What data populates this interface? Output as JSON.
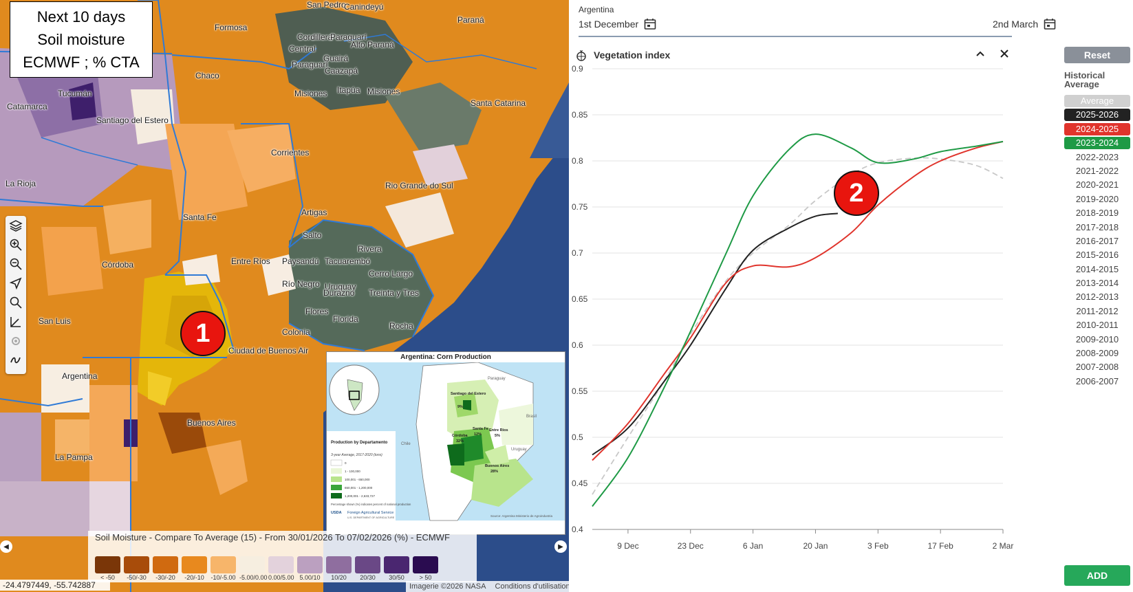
{
  "caption": {
    "line1": "Next 10 days",
    "line2": "Soil moisture",
    "line3": "ECMWF ; % CTA"
  },
  "badges": {
    "one": "1",
    "two": "2"
  },
  "map_labels": [
    {
      "text": "San Pedro",
      "k": "sanpedro"
    },
    {
      "text": "Canindeyú",
      "k": "canindeyu"
    },
    {
      "text": "Formosa",
      "k": "formosa"
    },
    {
      "text": "Cordillera",
      "k": "cordillera"
    },
    {
      "text": "Paraguarí",
      "k": "paraguari0"
    },
    {
      "text": "Central",
      "k": "central"
    },
    {
      "text": "Alto Paraná",
      "k": "altoparana"
    },
    {
      "text": "Paraná",
      "k": "parana"
    },
    {
      "text": "Guairá",
      "k": "guaira"
    },
    {
      "text": "Paraguarí",
      "k": "paraguari"
    },
    {
      "text": "Caazapá",
      "k": "caazapa"
    },
    {
      "text": "Chaco",
      "k": "chaco"
    },
    {
      "text": "Tucumán",
      "k": "tucuman"
    },
    {
      "text": "Misiones",
      "k": "misiones"
    },
    {
      "text": "Itapúa",
      "k": "itapua"
    },
    {
      "text": "Misiones",
      "k": "misiones2"
    },
    {
      "text": "Catamarca",
      "k": "catamarca"
    },
    {
      "text": "Santa Catarina",
      "k": "santacatarina"
    },
    {
      "text": "Santiago del Estero",
      "k": "santiago"
    },
    {
      "text": "Corrientes",
      "k": "corrientes"
    },
    {
      "text": "La Rioja",
      "k": "larioja"
    },
    {
      "text": "Rio Grande do Sul",
      "k": "riogrande"
    },
    {
      "text": "Artigas",
      "k": "artigas"
    },
    {
      "text": "Santa Fe",
      "k": "santafe"
    },
    {
      "text": "Salto",
      "k": "salto"
    },
    {
      "text": "Rivera",
      "k": "rivera"
    },
    {
      "text": "Córdoba",
      "k": "cordoba"
    },
    {
      "text": "Entre Ríos",
      "k": "entrerios"
    },
    {
      "text": "Paysandú",
      "k": "paysandu"
    },
    {
      "text": "Tacuarembó",
      "k": "tacuarembo"
    },
    {
      "text": "Cerro Largo",
      "k": "cerrolargo"
    },
    {
      "text": "Río Negro",
      "k": "rionegro"
    },
    {
      "text": "Uruguay",
      "k": "uruguay"
    },
    {
      "text": "Durazno",
      "k": "durazno"
    },
    {
      "text": "Treinta y Tres",
      "k": "treinta"
    },
    {
      "text": "San Luis",
      "k": "sanluis"
    },
    {
      "text": "Flores",
      "k": "flores"
    },
    {
      "text": "Florida",
      "k": "florida"
    },
    {
      "text": "Rocha",
      "k": "rocha"
    },
    {
      "text": "Colonia",
      "k": "colonia"
    },
    {
      "text": "Ciudad de Buenos Air",
      "k": "caba"
    },
    {
      "text": "Argentina",
      "k": "argentina"
    },
    {
      "text": "Buenos Aires",
      "k": "bsas"
    },
    {
      "text": "La Pampa",
      "k": "lapampa"
    }
  ],
  "inset": {
    "title": "Argentina: Corn Production",
    "legend_title": "Production by Departamento",
    "legend_sub": "3-year Average, 2017-2020 (tons)",
    "classes": [
      "0",
      "1 - 100,000",
      "100,001 - 650,000",
      "650,001 - 1,200,000",
      "1,200,001 - 2,633,727"
    ],
    "note": "Percentage shown (%) indicates percent of national production",
    "source": "Source: Argentina Ministerio de Agroindustria",
    "agency": "Foreign Agricultural Service",
    "agency_sub": "U.S. DEPARTMENT OF AGRICULTURE",
    "usda": "USDA",
    "labels": {
      "paraguay": "Paraguay",
      "brasil": "Brasil",
      "uruguay": "Uruguay",
      "chile": "Chile",
      "santiago": "Santiago del Estero",
      "santiago_pct": "9%",
      "santafe": "Santa Fe",
      "santafe_pct": "12%",
      "cordoba": "Córdoba",
      "cordoba_pct": "32%",
      "entrerios": "Entre Ríos",
      "entrerios_pct": "5%",
      "bsas": "Buenos Aires",
      "bsas_pct": "28%"
    }
  },
  "legend": {
    "title": "Soil Moisture - Compare To Average (15) - From 30/01/2026 To 07/02/2026 (%) - ECMWF",
    "colors": [
      "#7a3608",
      "#a84c0a",
      "#d06a10",
      "#e8891e",
      "#f7b56a",
      "#f6eee0",
      "#e3d2dc",
      "#bba0c0",
      "#8f6e9f",
      "#6a4886",
      "#4a2670",
      "#2a0c50"
    ],
    "labels": [
      "< -50",
      "-50/-30",
      "-30/-20",
      "-20/-10",
      "-10/-5.00",
      "-5.00/0.00",
      "0.00/5.00",
      "5.00/10",
      "10/20",
      "20/30",
      "30/50",
      "> 50"
    ]
  },
  "map_footer": {
    "coords": "-24.4797449, -55.742887",
    "imagery": "Imagerie ©2026 NASA",
    "terms": "Conditions d'utilisation"
  },
  "panel": {
    "region": "Argentina",
    "date_start": "1st December",
    "date_end": "2nd March",
    "chart_title": "Vegetation index",
    "reset": "Reset",
    "historical": "Historical Average",
    "add": "ADD",
    "years": [
      {
        "label": "Average",
        "bg": "#d0d0d0",
        "fg": "#ffffff"
      },
      {
        "label": "2025-2026",
        "bg": "#222222",
        "fg": "#ffffff"
      },
      {
        "label": "2024-2025",
        "bg": "#e0342c",
        "fg": "#ffffff"
      },
      {
        "label": "2023-2024",
        "bg": "#1e9a45",
        "fg": "#ffffff"
      },
      {
        "label": "2022-2023",
        "bg": "",
        "fg": "#444444"
      },
      {
        "label": "2021-2022",
        "bg": "",
        "fg": "#444444"
      },
      {
        "label": "2020-2021",
        "bg": "",
        "fg": "#444444"
      },
      {
        "label": "2019-2020",
        "bg": "",
        "fg": "#444444"
      },
      {
        "label": "2018-2019",
        "bg": "",
        "fg": "#444444"
      },
      {
        "label": "2017-2018",
        "bg": "",
        "fg": "#444444"
      },
      {
        "label": "2016-2017",
        "bg": "",
        "fg": "#444444"
      },
      {
        "label": "2015-2016",
        "bg": "",
        "fg": "#444444"
      },
      {
        "label": "2014-2015",
        "bg": "",
        "fg": "#444444"
      },
      {
        "label": "2013-2014",
        "bg": "",
        "fg": "#444444"
      },
      {
        "label": "2012-2013",
        "bg": "",
        "fg": "#444444"
      },
      {
        "label": "2011-2012",
        "bg": "",
        "fg": "#444444"
      },
      {
        "label": "2010-2011",
        "bg": "",
        "fg": "#444444"
      },
      {
        "label": "2009-2010",
        "bg": "",
        "fg": "#444444"
      },
      {
        "label": "2008-2009",
        "bg": "",
        "fg": "#444444"
      },
      {
        "label": "2007-2008",
        "bg": "",
        "fg": "#444444"
      },
      {
        "label": "2006-2007",
        "bg": "",
        "fg": "#444444"
      }
    ]
  },
  "chart_data": {
    "type": "line",
    "title": "Vegetation index",
    "xlabel": "",
    "ylabel": "",
    "xlim": [
      0,
      92
    ],
    "ylim": [
      0.4,
      0.9
    ],
    "yticks": [
      0.4,
      0.45,
      0.5,
      0.55,
      0.6,
      0.65,
      0.7,
      0.75,
      0.8,
      0.85,
      0.9
    ],
    "ytick_labels": [
      "0.4",
      "0.45",
      "0.5",
      "0.55",
      "0.6",
      "0.65",
      "0.7",
      "0.75",
      "0.8",
      "0.85",
      "0.9"
    ],
    "xticks": [
      8,
      22,
      36,
      50,
      64,
      78,
      92
    ],
    "xtick_labels": [
      "9 Dec",
      "23 Dec",
      "6 Jan",
      "20 Jan",
      "3 Feb",
      "17 Feb",
      "2 Mar"
    ],
    "series": [
      {
        "name": "Average",
        "color": "#c8c8c8",
        "dash": true,
        "x": [
          0,
          8,
          16,
          22,
          30,
          36,
          44,
          50,
          58,
          64,
          72,
          78,
          86,
          92
        ],
        "y": [
          0.438,
          0.5,
          0.56,
          0.612,
          0.67,
          0.7,
          0.73,
          0.757,
          0.785,
          0.798,
          0.803,
          0.802,
          0.795,
          0.781
        ]
      },
      {
        "name": "2025-2026",
        "color": "#222222",
        "dash": false,
        "x": [
          0,
          8,
          16,
          22,
          30,
          36,
          44,
          50,
          55
        ],
        "y": [
          0.481,
          0.51,
          0.56,
          0.6,
          0.662,
          0.703,
          0.727,
          0.74,
          0.743
        ]
      },
      {
        "name": "2024-2025",
        "color": "#e0342c",
        "dash": false,
        "x": [
          0,
          8,
          16,
          22,
          30,
          36,
          44,
          50,
          58,
          64,
          72,
          78,
          86,
          92
        ],
        "y": [
          0.475,
          0.515,
          0.568,
          0.608,
          0.668,
          0.686,
          0.685,
          0.695,
          0.722,
          0.752,
          0.783,
          0.8,
          0.814,
          0.821
        ]
      },
      {
        "name": "2023-2024",
        "color": "#1e9a45",
        "dash": false,
        "x": [
          0,
          8,
          16,
          22,
          30,
          36,
          44,
          50,
          58,
          64,
          72,
          78,
          86,
          92
        ],
        "y": [
          0.425,
          0.478,
          0.553,
          0.615,
          0.7,
          0.762,
          0.812,
          0.829,
          0.814,
          0.798,
          0.802,
          0.81,
          0.816,
          0.821
        ]
      }
    ]
  }
}
